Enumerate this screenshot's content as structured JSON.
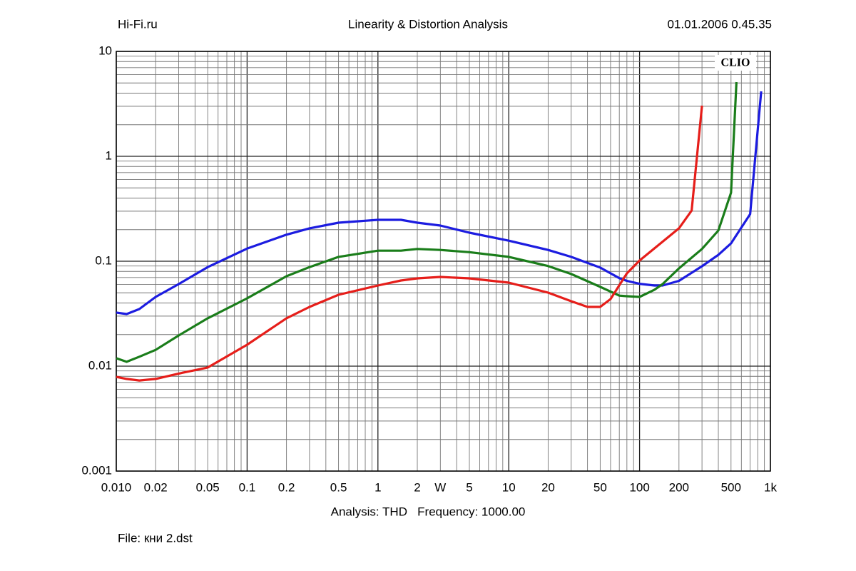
{
  "chart_data": {
    "type": "line",
    "header_left": "Hi-Fi.ru",
    "title": "Linearity & Distortion Analysis",
    "header_right": "01.01.2006 0.45.35",
    "watermark": "CLIO",
    "footer": "Analysis: THD   Frequency: 1000.00",
    "file_label": "File: кни 2.dst",
    "xscale": "log",
    "yscale": "log",
    "grid": true,
    "xlim": [
      0.01,
      1000
    ],
    "ylim": [
      0.001,
      10
    ],
    "xticks": [
      {
        "value": 0.01,
        "label": "0.010"
      },
      0.02,
      0.05,
      0.1,
      0.2,
      0.5,
      1,
      2,
      {
        "value": 3,
        "label": "W"
      },
      5,
      10,
      20,
      50,
      100,
      200,
      500,
      {
        "value": 1000,
        "label": "1k"
      }
    ],
    "yticks": [
      0.001,
      0.01,
      0.1,
      1,
      10
    ],
    "xgrid": [
      0.01,
      0.02,
      0.03,
      0.04,
      0.05,
      0.06,
      0.07,
      0.08,
      0.09,
      0.1,
      0.2,
      0.3,
      0.4,
      0.5,
      0.6,
      0.7,
      0.8,
      0.9,
      1,
      2,
      3,
      4,
      5,
      6,
      7,
      8,
      9,
      10,
      20,
      30,
      40,
      50,
      60,
      70,
      80,
      90,
      100,
      200,
      300,
      400,
      500,
      600,
      700,
      800,
      900,
      1000
    ],
    "ygrid": [
      0.001,
      0.002,
      0.003,
      0.004,
      0.005,
      0.006,
      0.007,
      0.008,
      0.009,
      0.01,
      0.02,
      0.03,
      0.04,
      0.05,
      0.06,
      0.07,
      0.08,
      0.09,
      0.1,
      0.2,
      0.3,
      0.4,
      0.5,
      0.6,
      0.7,
      0.8,
      0.9,
      1,
      2,
      3,
      4,
      5,
      6,
      7,
      8,
      9,
      10
    ],
    "series": [
      {
        "color": "#1c1ce0",
        "x": [
          0.01,
          0.012,
          0.015,
          0.02,
          0.03,
          0.05,
          0.1,
          0.2,
          0.3,
          0.5,
          1,
          1.5,
          2,
          3,
          5,
          10,
          20,
          30,
          50,
          70,
          80,
          100,
          130,
          150,
          200,
          300,
          400,
          500,
          700,
          850
        ],
        "values": [
          0.0324,
          0.0314,
          0.035,
          0.0457,
          0.0606,
          0.088,
          0.132,
          0.179,
          0.206,
          0.233,
          0.248,
          0.248,
          0.233,
          0.219,
          0.187,
          0.157,
          0.128,
          0.11,
          0.087,
          0.069,
          0.065,
          0.061,
          0.0587,
          0.0587,
          0.065,
          0.0896,
          0.115,
          0.148,
          0.281,
          4.16
        ]
      },
      {
        "color": "#1a7d1a",
        "x": [
          0.01,
          0.012,
          0.015,
          0.02,
          0.03,
          0.05,
          0.1,
          0.2,
          0.3,
          0.5,
          1,
          1.5,
          2,
          3,
          5,
          10,
          20,
          30,
          50,
          70,
          80,
          100,
          130,
          150,
          200,
          300,
          400,
          500,
          550
        ],
        "values": [
          0.0119,
          0.011,
          0.0123,
          0.0143,
          0.0196,
          0.0286,
          0.0443,
          0.072,
          0.088,
          0.11,
          0.126,
          0.126,
          0.131,
          0.128,
          0.122,
          0.11,
          0.09,
          0.0755,
          0.057,
          0.047,
          0.0464,
          0.0457,
          0.0535,
          0.0606,
          0.0855,
          0.131,
          0.196,
          0.45,
          5.1
        ]
      },
      {
        "color": "#e61e1a",
        "x": [
          0.01,
          0.012,
          0.015,
          0.02,
          0.03,
          0.05,
          0.1,
          0.2,
          0.3,
          0.5,
          1,
          1.5,
          2,
          3,
          5,
          10,
          20,
          30,
          40,
          50,
          60,
          80,
          100,
          200,
          250,
          300
        ],
        "values": [
          0.0079,
          0.00755,
          0.0073,
          0.00755,
          0.0085,
          0.0097,
          0.016,
          0.0286,
          0.0367,
          0.0479,
          0.0587,
          0.0655,
          0.0687,
          0.0708,
          0.0687,
          0.0625,
          0.0502,
          0.0416,
          0.0367,
          0.0367,
          0.0436,
          0.0766,
          0.1016,
          0.206,
          0.304,
          3.04
        ]
      }
    ]
  }
}
